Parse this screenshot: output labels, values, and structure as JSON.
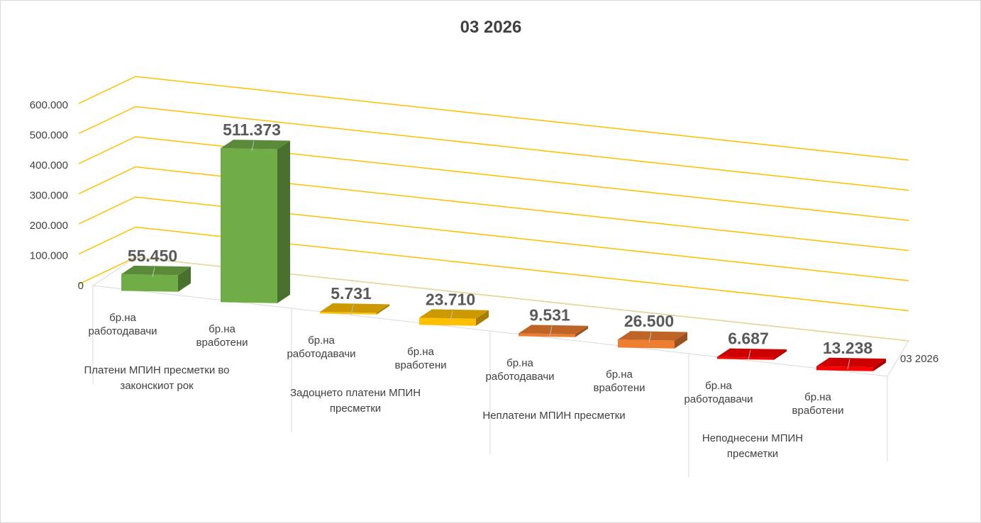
{
  "chart_data": {
    "type": "bar",
    "title": "03  2026",
    "series_axis_label": "03 2026",
    "y_tick_labels": [
      "0",
      "100.000",
      "200.000",
      "300.000",
      "400.000",
      "500.000",
      "600.000"
    ],
    "ylim": [
      0,
      600000
    ],
    "grid": true,
    "groups": [
      {
        "label_lines": [
          "Платени МПИН пресметки во",
          "законскиот рок"
        ]
      },
      {
        "label_lines": [
          "Задоцнето платени МПИН",
          "пресметки"
        ]
      },
      {
        "label_lines": [
          "Неплатени МПИН пресметки"
        ]
      },
      {
        "label_lines": [
          "Неподнесени МПИН",
          "пресметки"
        ]
      }
    ],
    "categories": [
      {
        "group": 0,
        "label_lines": [
          "бр.на",
          "работодавачи"
        ],
        "value": 55450,
        "value_label": "55.450"
      },
      {
        "group": 0,
        "label_lines": [
          "бр.на",
          "вработени"
        ],
        "value": 511373,
        "value_label": "511.373"
      },
      {
        "group": 1,
        "label_lines": [
          "бр.на",
          "работодавачи"
        ],
        "value": 5731,
        "value_label": "5.731"
      },
      {
        "group": 1,
        "label_lines": [
          "бр.на",
          "вработени"
        ],
        "value": 23710,
        "value_label": "23.710"
      },
      {
        "group": 2,
        "label_lines": [
          "бр.на",
          "работодавачи"
        ],
        "value": 9531,
        "value_label": "9.531"
      },
      {
        "group": 2,
        "label_lines": [
          "бр.на",
          "вработени"
        ],
        "value": 26500,
        "value_label": "26.500"
      },
      {
        "group": 3,
        "label_lines": [
          "бр.на",
          "работодавачи"
        ],
        "value": 6687,
        "value_label": "6.687"
      },
      {
        "group": 3,
        "label_lines": [
          "бр.на",
          "вработени"
        ],
        "value": 13238,
        "value_label": "13.238"
      }
    ],
    "colors": {
      "bars": [
        "#70ad47",
        "#70ad47",
        "#ffc000",
        "#ffc000",
        "#ed7d31",
        "#ed7d31",
        "#ff0000",
        "#ff0000"
      ],
      "gridlines": "#ffc000",
      "axis": "#d9d9d9",
      "text": "#404040",
      "data_labels": "#595959"
    }
  }
}
